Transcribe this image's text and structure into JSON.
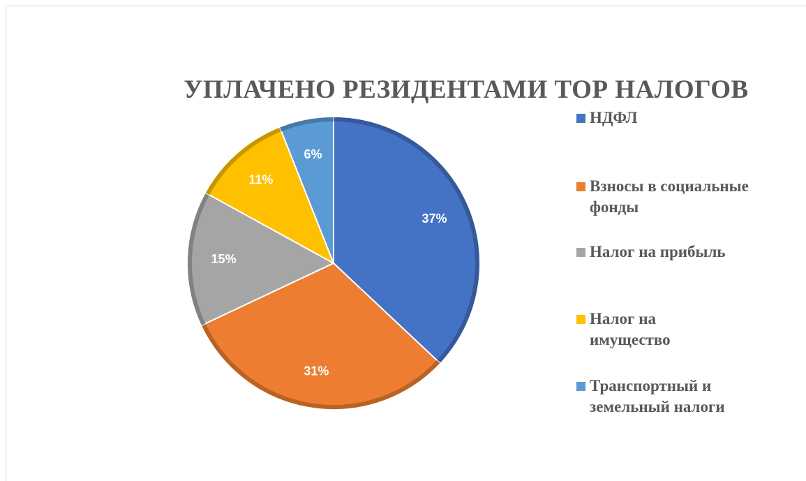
{
  "chart_data": {
    "type": "pie",
    "title": "УПЛАЧЕНО РЕЗИДЕНТАМИ ТОР НАЛОГОВ",
    "categories": [
      "НДФЛ",
      "Взносы в социальные фонды",
      "Налог на прибыль",
      "Налог на имущество",
      "Транспортный и земельный налоги"
    ],
    "values": [
      37,
      31,
      15,
      11,
      6
    ],
    "value_labels": [
      "37%",
      "31%",
      "15%",
      "11%",
      "6%"
    ],
    "colors": [
      "#4472c4",
      "#ed7d31",
      "#a5a5a5",
      "#ffc000",
      "#5b9bd5"
    ],
    "legend": "right"
  }
}
